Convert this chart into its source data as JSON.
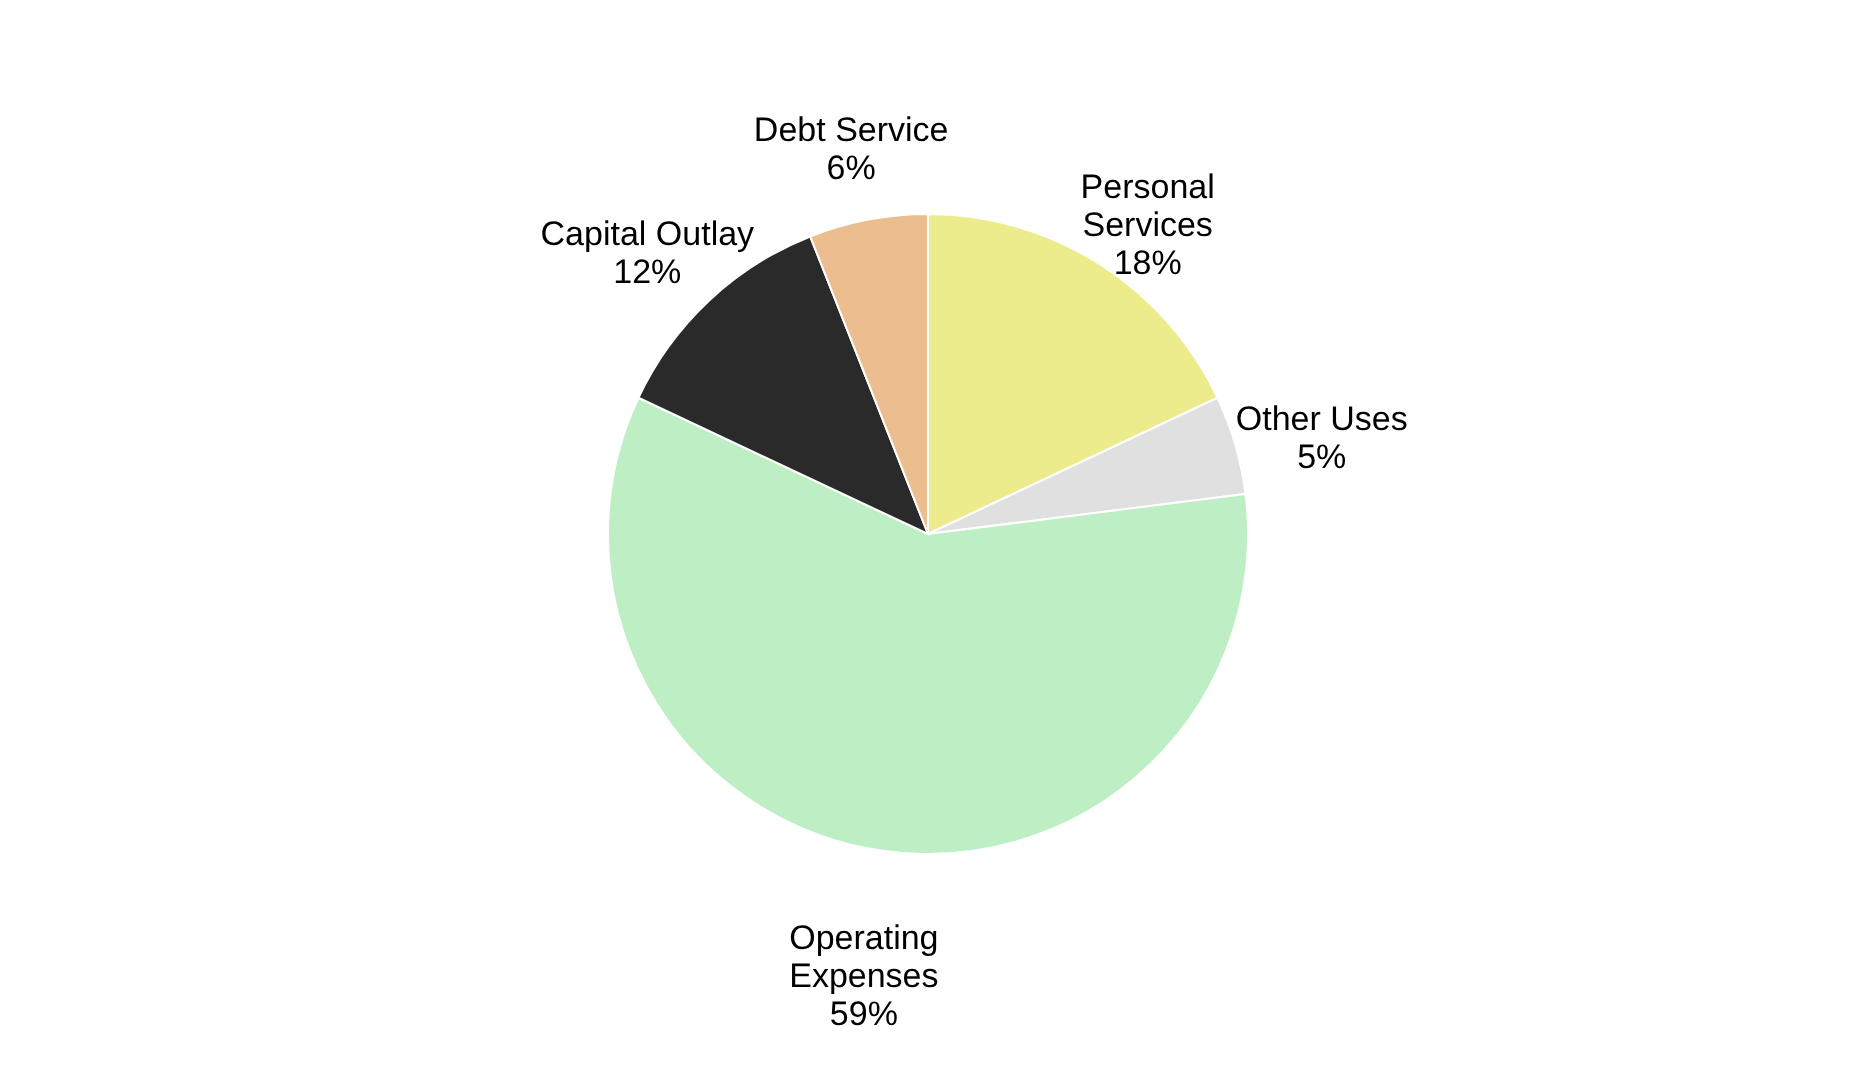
{
  "chart_data": {
    "type": "pie",
    "categories": [
      "Personal Services",
      "Other Uses",
      "Operating Expenses",
      "Capital Outlay",
      "Debt Service"
    ],
    "values": [
      18,
      5,
      59,
      12,
      6
    ],
    "value_labels": [
      "18%",
      "5%",
      "59%",
      "12%",
      "6%"
    ],
    "colors": [
      "#ecec8c",
      "#e0e0e0",
      "#bdeec4",
      "#2a2a2a",
      "#ebbd8f"
    ],
    "legend": false
  }
}
